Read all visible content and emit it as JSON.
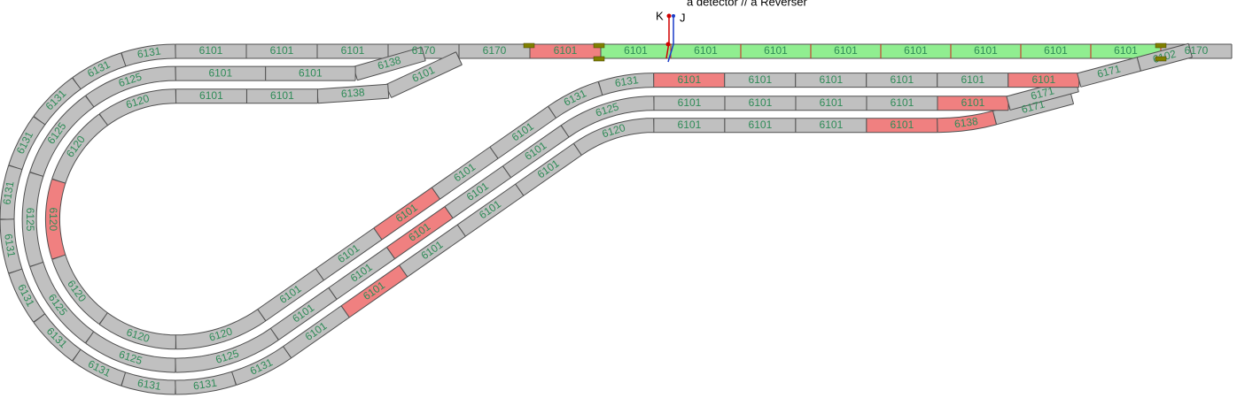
{
  "header": {
    "title": "a detector // a Reverser"
  },
  "signals": [
    "K",
    "J"
  ],
  "tracks": [
    {
      "pieces": [
        "6170",
        "6101",
        "6101",
        "6101",
        "6101",
        "6101",
        "6101",
        "6101",
        "6101",
        "6101",
        "6170",
        "6170",
        "6101",
        "6101",
        "6101",
        "6131",
        "6131",
        "6131",
        "6131",
        "6131",
        "6131",
        "6131",
        "6131",
        "6131",
        "6131",
        "6131",
        "6131",
        "6101",
        "6101",
        "6101",
        "6101",
        "6101",
        "6120",
        "6101",
        "6101",
        "6101",
        "6101",
        "6138",
        "6171"
      ]
    },
    {
      "pieces": [
        "6138",
        "6101",
        "6101",
        "6125",
        "6125",
        "6125",
        "6125",
        "6125",
        "6125",
        "6101",
        "6101",
        "6101",
        "6101",
        "6101",
        "6125",
        "6101",
        "6101",
        "6101",
        "6101",
        "6101",
        "6171"
      ]
    },
    {
      "pieces": [
        "6101",
        "6138",
        "6101",
        "6101",
        "6120",
        "6120",
        "6120",
        "6120",
        "6120",
        "6120",
        "6101",
        "6101",
        "6101",
        "6101",
        "6101",
        "6131",
        "6131",
        "6101",
        "6101",
        "6101",
        "6101",
        "6101",
        "6101",
        "6171",
        "6102"
      ]
    }
  ]
}
